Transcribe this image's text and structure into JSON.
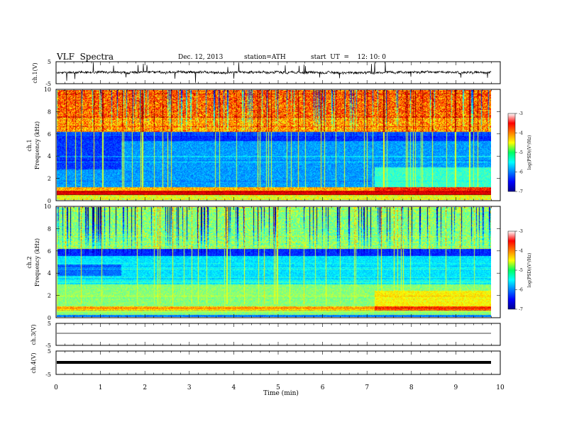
{
  "header": {
    "title": "VLF  Spectra",
    "date": "Dec. 12, 2013",
    "station": "station=ATH",
    "start": "start  UT  =    12: 10: 0"
  },
  "chart_data": [
    {
      "type": "line",
      "panel": "ch1-waveform",
      "ylabel": "ch.1(V)",
      "ylim": [
        -5,
        5
      ],
      "yticks": [
        "5",
        "-5"
      ],
      "xlim": [
        0,
        10
      ],
      "description_values": "noisy waveform around 0 V spanning ~0 to 9.8 min"
    },
    {
      "type": "heatmap",
      "panel": "ch1-spectrogram",
      "ylabel_lines": [
        "ch.1",
        "Frequency  (kHz)"
      ],
      "ylim": [
        0,
        10
      ],
      "yticks": [
        "0",
        "2",
        "4",
        "6",
        "8",
        "10"
      ],
      "xlim": [
        0,
        10
      ],
      "data_end_min": 9.8,
      "colorbar": {
        "label": "log(PSD)(V²/Hz)",
        "range": [
          -7,
          -3
        ],
        "ticks": [
          "-3",
          "-4",
          "-5",
          "-6",
          "-7"
        ]
      }
    },
    {
      "type": "heatmap",
      "panel": "ch2-spectrogram",
      "ylabel_lines": [
        "ch.2",
        "Frequency  (kHz)"
      ],
      "ylim": [
        0,
        10
      ],
      "yticks": [
        "0",
        "2",
        "4",
        "6",
        "8",
        "10"
      ],
      "xlim": [
        0,
        10
      ],
      "data_end_min": 9.8,
      "colorbar": {
        "label": "log(PSD)(V²/Hz)",
        "range": [
          -7,
          -3
        ],
        "ticks": [
          "-3",
          "-4",
          "-5",
          "-6",
          "-7"
        ]
      }
    },
    {
      "type": "line",
      "panel": "ch3-waveform",
      "ylabel": "ch.3(V)",
      "ylim": [
        -5,
        5
      ],
      "yticks": [
        "5",
        "-5"
      ],
      "xlim": [
        0,
        10
      ]
    },
    {
      "type": "line",
      "panel": "ch4-waveform",
      "ylabel": "ch.4(V)",
      "ylim": [
        -5,
        5
      ],
      "yticks": [
        "5",
        "-5"
      ],
      "xlim": [
        0,
        10
      ]
    }
  ],
  "xaxis": {
    "label": "Time  (min)",
    "ticks": [
      "0",
      "1",
      "2",
      "3",
      "4",
      "5",
      "6",
      "7",
      "8",
      "9",
      "10"
    ]
  },
  "colors": {
    "background": "#ffffff",
    "trace": "#000000",
    "jet_low": "#00008f",
    "jet_high": "#7f0000"
  }
}
